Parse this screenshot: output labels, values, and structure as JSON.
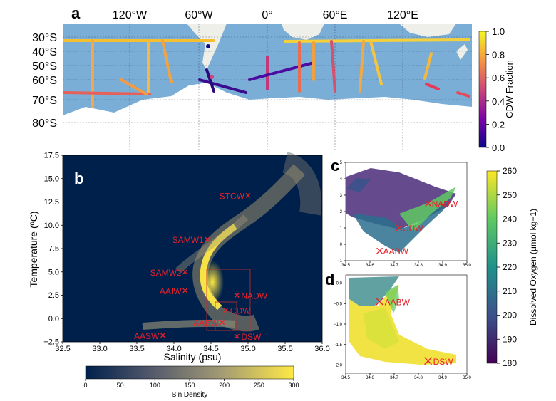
{
  "chart_data": [
    {
      "panel": "a",
      "type": "map",
      "x_tick_labels": [
        "120°W",
        "60°W",
        "0°",
        "60°E",
        "120°E"
      ],
      "y_tick_labels": [
        "30°S",
        "40°S",
        "50°S",
        "60°S",
        "70°S",
        "80°S"
      ],
      "colorbar": {
        "label": "CDW Fraction",
        "ticks": [
          "0.0",
          "0.2",
          "0.4",
          "0.6",
          "0.8",
          "1.0"
        ],
        "range": [
          0,
          1
        ],
        "colormap": "plasma"
      },
      "colors": {
        "ocean": "#7aaed6",
        "land": "#f1f1f1",
        "ice": "#ffffff"
      }
    },
    {
      "panel": "b",
      "type": "heatmap",
      "xlabel": "Salinity (psu)",
      "ylabel": "Temperature (ºC)",
      "xlim": [
        32.5,
        36.0
      ],
      "ylim": [
        -2.5,
        17.5
      ],
      "x_ticks": [
        "32.5",
        "33.0",
        "33.5",
        "34.0",
        "34.5",
        "35.0",
        "35.5",
        "36.0"
      ],
      "y_ticks": [
        "−2.5",
        "0.0",
        "2.5",
        "5.0",
        "7.5",
        "10.0",
        "12.5",
        "15.0",
        "17.5"
      ],
      "water_masses": [
        {
          "label": "STCW",
          "x": 35.0,
          "y": 13.2
        },
        {
          "label": "SAMW1",
          "x": 34.45,
          "y": 8.5
        },
        {
          "label": "SAMW2",
          "x": 34.15,
          "y": 5.0
        },
        {
          "label": "AAIW",
          "x": 34.15,
          "y": 3.0
        },
        {
          "label": "NADW",
          "x": 34.85,
          "y": 2.5
        },
        {
          "label": "CDW",
          "x": 34.7,
          "y": 0.9
        },
        {
          "label": "AABW",
          "x": 34.65,
          "y": -0.4
        },
        {
          "label": "AASW",
          "x": 33.85,
          "y": -1.8
        },
        {
          "label": "DSW",
          "x": 34.85,
          "y": -1.9
        }
      ],
      "colorbar": {
        "label": "Bin Density",
        "ticks": [
          "0",
          "50",
          "100",
          "150",
          "200",
          "250",
          "300"
        ],
        "range": [
          0,
          300
        ],
        "colormap": "cividis"
      }
    },
    {
      "panel": "c",
      "type": "scatter",
      "xlim": [
        34.5,
        35.0
      ],
      "ylim": [
        -1,
        5
      ],
      "x_ticks": [
        "34.5",
        "34.6",
        "34.7",
        "34.8",
        "34.9",
        "35.0"
      ],
      "y_ticks": [
        "−1",
        "0",
        "1",
        "2",
        "3",
        "4",
        "5"
      ],
      "water_masses": [
        {
          "label": "NADW",
          "x": 34.84,
          "y": 2.5
        },
        {
          "label": "CDW",
          "x": 34.72,
          "y": 1.0
        },
        {
          "label": "AABW",
          "x": 34.64,
          "y": -0.4
        }
      ]
    },
    {
      "panel": "d",
      "type": "scatter",
      "xlim": [
        34.5,
        35.0
      ],
      "ylim": [
        -2.2,
        0.2
      ],
      "x_ticks": [
        "34.5",
        "34.6",
        "34.7",
        "34.8",
        "34.9",
        "35.0"
      ],
      "y_ticks": [
        "−2.0",
        "−1.5",
        "−1.0",
        "−0.5",
        "0.0"
      ],
      "water_masses": [
        {
          "label": "AABW",
          "x": 34.64,
          "y": -0.45
        },
        {
          "label": "DSW",
          "x": 34.84,
          "y": -1.9
        }
      ],
      "colorbar": {
        "label": "Dissolved Oxygen (μmol kg−1)",
        "ticks": [
          "180",
          "190",
          "200",
          "210",
          "220",
          "230",
          "240",
          "250",
          "260"
        ],
        "range": [
          180,
          260
        ],
        "colormap": "viridis"
      }
    }
  ],
  "panel_letters": {
    "a": "a",
    "b": "b",
    "c": "c",
    "d": "d"
  }
}
